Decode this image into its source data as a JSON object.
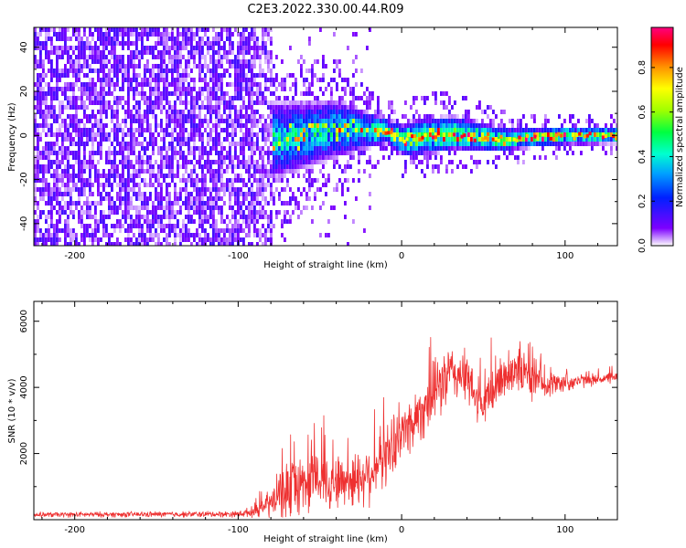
{
  "title": "C2E3.2022.330.00.44.R09",
  "colors": {
    "snr_line": "#ee3030",
    "colormap": [
      "#ffffff",
      "#7d00ff",
      "#0020ff",
      "#00a0ff",
      "#00ffd0",
      "#00ff40",
      "#a0ff00",
      "#ffff00",
      "#ff9000",
      "#ff0000",
      "#ff0080"
    ]
  },
  "chart_data": [
    {
      "type": "heatmap",
      "xlabel": "Height of straight line (km)",
      "ylabel": "Frequency (Hz)",
      "xlim": [
        -225,
        132
      ],
      "ylim": [
        -50,
        49
      ],
      "xticks": [
        -200,
        -100,
        0,
        100
      ],
      "yticks": [
        -40,
        -20,
        0,
        20,
        40
      ],
      "colorbar": {
        "label": "Normalized spectral amplitude",
        "range": [
          0,
          0.98
        ],
        "ticks": [
          "0.0",
          "0.2",
          "0.4",
          "0.6",
          "0.8"
        ]
      },
      "noise_region_x": [
        -225,
        -80
      ],
      "signal_center_hz": [
        {
          "x": -75,
          "y": -2
        },
        {
          "x": -40,
          "y": 3
        },
        {
          "x": -10,
          "y": 2
        },
        {
          "x": 0,
          "y": -2
        },
        {
          "x": 30,
          "y": 1
        },
        {
          "x": 60,
          "y": -2
        },
        {
          "x": 100,
          "y": 0
        },
        {
          "x": 130,
          "y": 0
        }
      ],
      "signal_halfwidth_hz": [
        {
          "x": -75,
          "y": 18
        },
        {
          "x": -40,
          "y": 14
        },
        {
          "x": -10,
          "y": 6
        },
        {
          "x": 10,
          "y": 9
        },
        {
          "x": 40,
          "y": 8
        },
        {
          "x": 70,
          "y": 5
        },
        {
          "x": 130,
          "y": 4
        }
      ]
    },
    {
      "type": "line",
      "xlabel": "Height of straight line (km)",
      "ylabel": "SNR (10 * v/v)",
      "xlim": [
        -225,
        132
      ],
      "ylim": [
        0,
        6600
      ],
      "xticks": [
        -200,
        -100,
        0,
        100
      ],
      "yticks": [
        2000,
        4000,
        6000
      ],
      "series": [
        {
          "envelope_x": [
            -225,
            -100,
            -90,
            -80,
            -70,
            -60,
            -50,
            -40,
            -30,
            -20,
            -10,
            0,
            10,
            20,
            25,
            30,
            40,
            45,
            50,
            55,
            60,
            70,
            75,
            80,
            90,
            100,
            110,
            120,
            132
          ],
          "mean": [
            150,
            170,
            250,
            500,
            950,
            1100,
            1250,
            1150,
            1200,
            1400,
            1950,
            2600,
            3150,
            3850,
            4150,
            4450,
            4300,
            3700,
            3400,
            3850,
            4200,
            4650,
            4400,
            4200,
            4100,
            4150,
            4200,
            4250,
            4300
          ],
          "spread": [
            90,
            110,
            200,
            550,
            1100,
            1100,
            1100,
            1000,
            1000,
            1100,
            1100,
            1000,
            1100,
            1100,
            1200,
            1000,
            900,
            850,
            750,
            1000,
            850,
            900,
            900,
            700,
            450,
            350,
            250,
            200,
            200
          ]
        }
      ]
    }
  ]
}
